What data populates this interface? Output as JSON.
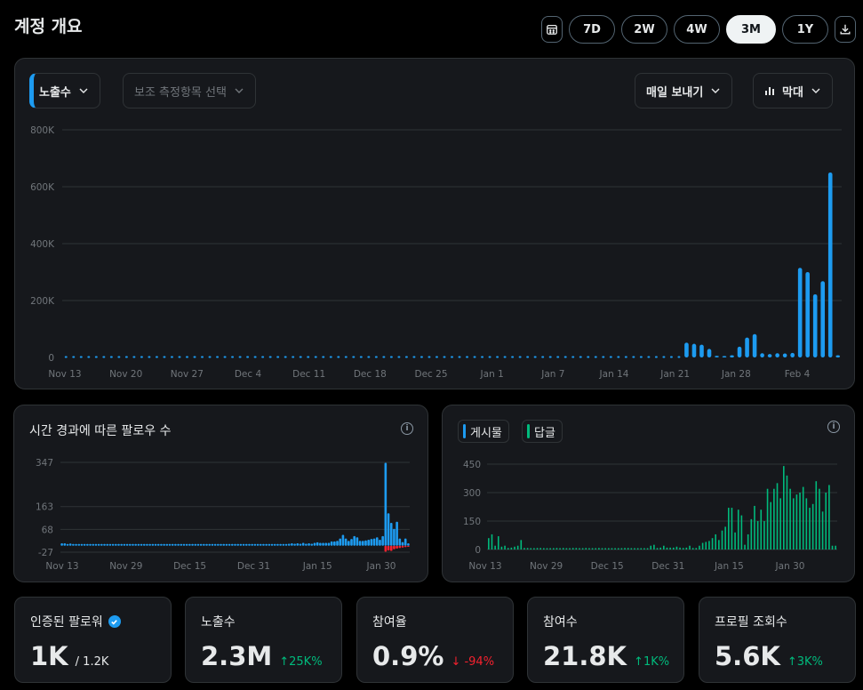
{
  "header": {
    "title": "계정 개요"
  },
  "ranges": [
    "7D",
    "2W",
    "4W",
    "3M",
    "1Y"
  ],
  "active_range": "3M",
  "main_panel": {
    "metric_dropdown": "노출수",
    "secondary_dropdown": "보조 측정항목 선택",
    "export_dropdown": "매일 보내기",
    "chart_type_dropdown": "막대"
  },
  "followers_panel": {
    "title": "시간 경과에 따른 팔로우 수"
  },
  "posts_panel": {
    "legend_posts": "게시물",
    "legend_replies": "답글"
  },
  "colors": {
    "accent": "#1d9bf0",
    "positive": "#00ba7c",
    "negative": "#f4212e"
  },
  "chart_data": [
    {
      "type": "bar",
      "ylim": [
        0,
        800000
      ],
      "yticks": [
        "0",
        "200K",
        "400K",
        "600K",
        "800K"
      ],
      "xticks": [
        "Nov 13",
        "Nov 20",
        "Nov 27",
        "Dec 4",
        "Dec 11",
        "Dec 18",
        "Dec 25",
        "Jan 1",
        "Jan 7",
        "Jan 14",
        "Jan 21",
        "Jan 28",
        "Feb 4"
      ],
      "series": [
        {
          "values": [
            0,
            0,
            0,
            0,
            0,
            0,
            0,
            0,
            0,
            0,
            0,
            0,
            0,
            0,
            0,
            0,
            0,
            0,
            0,
            0,
            0,
            0,
            0,
            0,
            0,
            0,
            0,
            0,
            0,
            0,
            0,
            0,
            0,
            0,
            0,
            0,
            0,
            0,
            0,
            0,
            0,
            0,
            0,
            0,
            0,
            0,
            0,
            0,
            0,
            0,
            0,
            0,
            0,
            0,
            0,
            0,
            0,
            0,
            0,
            0,
            0,
            0,
            0,
            0,
            0,
            0,
            0,
            0,
            0,
            0,
            0,
            0,
            0,
            0,
            0,
            0,
            0,
            0,
            0,
            0,
            2000,
            3000,
            52000,
            48000,
            45000,
            30000,
            6000,
            5000,
            8000,
            38000,
            70000,
            82000,
            15000,
            12000,
            15000,
            14000,
            16000,
            315000,
            300000,
            222000,
            268000,
            650000,
            8000
          ]
        }
      ]
    },
    {
      "type": "bar",
      "ylim": [
        -27,
        347
      ],
      "yticks": [
        "-27",
        "68",
        "163",
        "347"
      ],
      "xticks": [
        "Nov 13",
        "Nov 29",
        "Dec 15",
        "Dec 31",
        "Jan 15",
        "Jan 30"
      ],
      "series": [
        {
          "name": "gain",
          "values": [
            10,
            10,
            7,
            9,
            5,
            6,
            6,
            5,
            5,
            5,
            5,
            5,
            5,
            5,
            5,
            5,
            5,
            5,
            5,
            5,
            5,
            5,
            5,
            5,
            5,
            5,
            5,
            5,
            5,
            5,
            5,
            5,
            5,
            5,
            5,
            5,
            5,
            5,
            5,
            5,
            5,
            5,
            5,
            5,
            5,
            5,
            5,
            5,
            5,
            5,
            5,
            5,
            5,
            5,
            5,
            5,
            5,
            5,
            5,
            5,
            5,
            5,
            5,
            5,
            5,
            5,
            5,
            5,
            5,
            5,
            5,
            5,
            5,
            5,
            5,
            5,
            5,
            5,
            5,
            5,
            8,
            10,
            8,
            10,
            8,
            12,
            8,
            10,
            8,
            12,
            14,
            12,
            12,
            12,
            12,
            18,
            18,
            20,
            30,
            45,
            30,
            20,
            28,
            40,
            35,
            20,
            20,
            22,
            25,
            28,
            30,
            35,
            25,
            40,
            345,
            135,
            95,
            70,
            100,
            30,
            15,
            30,
            10
          ]
        },
        {
          "name": "loss",
          "values": [
            0,
            0,
            0,
            0,
            0,
            0,
            0,
            0,
            0,
            0,
            0,
            0,
            0,
            0,
            0,
            0,
            0,
            0,
            0,
            0,
            0,
            0,
            0,
            0,
            0,
            0,
            0,
            0,
            0,
            0,
            0,
            0,
            0,
            0,
            0,
            0,
            0,
            0,
            0,
            0,
            0,
            0,
            0,
            0,
            0,
            0,
            0,
            0,
            0,
            0,
            0,
            0,
            0,
            0,
            0,
            0,
            0,
            0,
            0,
            0,
            0,
            0,
            0,
            0,
            0,
            0,
            0,
            0,
            0,
            0,
            0,
            0,
            0,
            0,
            0,
            0,
            0,
            0,
            0,
            0,
            0,
            0,
            0,
            0,
            0,
            0,
            0,
            0,
            0,
            0,
            0,
            0,
            0,
            0,
            0,
            0,
            0,
            0,
            0,
            0,
            0,
            0,
            0,
            0,
            0,
            0,
            0,
            0,
            0,
            0,
            0,
            0,
            0,
            0,
            -25,
            -20,
            -22,
            -15,
            -12,
            -10,
            -8,
            -6,
            -5
          ]
        }
      ]
    },
    {
      "type": "bar",
      "ylim": [
        0,
        450
      ],
      "yticks": [
        "0",
        "150",
        "300",
        "450"
      ],
      "xticks": [
        "Nov 13",
        "Nov 29",
        "Dec 15",
        "Dec 31",
        "Jan 15",
        "Jan 30"
      ],
      "series": [
        {
          "name": "게시물",
          "values": [
            0,
            0,
            0,
            0,
            0,
            0,
            0,
            0,
            0,
            0,
            0,
            0,
            0,
            0,
            0,
            0,
            0,
            0,
            0,
            0,
            0,
            0,
            0,
            0,
            0,
            0,
            0,
            0,
            0,
            0,
            0,
            0,
            0,
            0,
            0,
            0,
            0,
            0,
            0,
            0,
            0,
            0,
            0,
            0,
            0,
            0,
            0,
            0,
            0,
            0,
            0,
            0,
            0,
            0,
            0,
            0,
            0,
            0,
            0,
            0,
            0,
            0,
            0,
            0,
            0,
            0,
            0,
            0,
            0,
            0,
            0,
            0,
            0,
            0,
            0,
            0,
            0,
            0,
            0,
            0,
            0,
            0,
            0,
            0,
            0,
            0,
            0,
            0,
            0,
            0,
            0,
            0,
            0,
            0,
            0,
            0,
            0,
            0,
            0,
            0,
            0,
            0,
            0,
            0,
            0,
            0,
            0,
            0,
            0,
            0,
            0,
            0,
            0,
            0,
            0,
            0,
            0,
            0,
            0,
            0,
            0,
            0
          ]
        },
        {
          "name": "답글",
          "values": [
            60,
            80,
            20,
            70,
            15,
            20,
            8,
            10,
            15,
            20,
            50,
            8,
            8,
            5,
            5,
            8,
            8,
            5,
            5,
            5,
            5,
            8,
            5,
            8,
            5,
            5,
            8,
            8,
            5,
            5,
            8,
            5,
            5,
            5,
            8,
            5,
            5,
            5,
            5,
            5,
            5,
            5,
            8,
            8,
            5,
            5,
            5,
            5,
            5,
            5,
            20,
            25,
            8,
            10,
            20,
            10,
            10,
            10,
            15,
            10,
            8,
            10,
            20,
            8,
            8,
            20,
            35,
            40,
            45,
            60,
            80,
            50,
            100,
            120,
            220,
            220,
            90,
            210,
            180,
            25,
            80,
            160,
            230,
            150,
            210,
            150,
            320,
            250,
            320,
            350,
            270,
            440,
            390,
            320,
            270,
            290,
            300,
            330,
            270,
            220,
            240,
            360,
            320,
            200,
            300,
            340,
            20,
            20
          ]
        }
      ]
    }
  ],
  "stats": [
    {
      "label": "인증된 팔로워",
      "value": "1K",
      "sub": "/ 1.2K",
      "change": "",
      "dir": ""
    },
    {
      "label": "노출수",
      "value": "2.3M",
      "sub": "",
      "change": "25K%",
      "dir": "up"
    },
    {
      "label": "참여율",
      "value": "0.9%",
      "sub": "",
      "change": "-94%",
      "dir": "down"
    },
    {
      "label": "참여수",
      "value": "21.8K",
      "sub": "",
      "change": "1K%",
      "dir": "up"
    },
    {
      "label": "프로필 조회수",
      "value": "5.6K",
      "sub": "",
      "change": "3K%",
      "dir": "up"
    }
  ]
}
